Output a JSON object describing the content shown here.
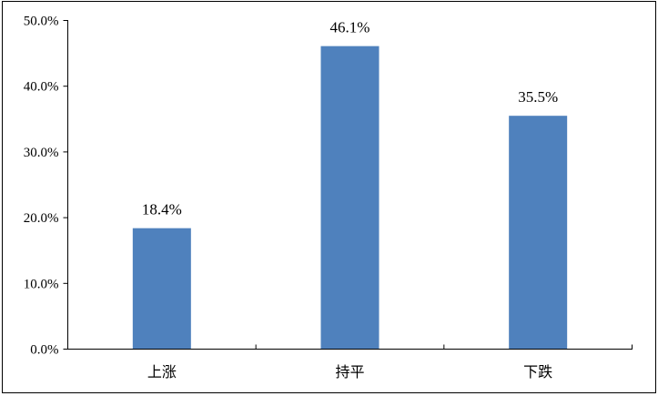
{
  "chart_data": {
    "type": "bar",
    "categories": [
      "上涨",
      "持平",
      "下跌"
    ],
    "values": [
      18.4,
      46.1,
      35.5
    ],
    "data_labels": [
      "18.4%",
      "46.1%",
      "35.5%"
    ],
    "y_ticks": [
      "0.0%",
      "10.0%",
      "20.0%",
      "30.0%",
      "40.0%",
      "50.0%"
    ],
    "ylim": [
      0,
      50
    ],
    "grid": false,
    "bar_color": "#4F81BD",
    "title": "",
    "xlabel": "",
    "ylabel": ""
  }
}
